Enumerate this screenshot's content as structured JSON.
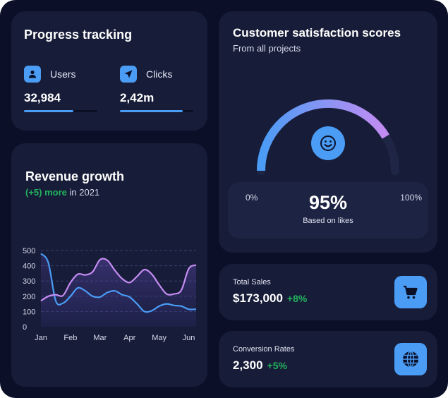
{
  "progress": {
    "title": "Progress tracking",
    "metrics": [
      {
        "label": "Users",
        "value": "32,984",
        "icon": "user-icon",
        "progress": 0.67
      },
      {
        "label": "Clicks",
        "value": "2,42m",
        "icon": "cursor-arrow-icon",
        "progress": 0.86
      }
    ]
  },
  "revenue": {
    "title": "Revenue growth",
    "change": "(+5) more",
    "period": "in 2021"
  },
  "satisfaction": {
    "title": "Customer satisfaction scores",
    "subtitle": "From all projects",
    "min_label": "0%",
    "max_label": "100%",
    "value": "95%",
    "note": "Based on likes",
    "score": 95,
    "icon": "smiley-icon"
  },
  "sales": {
    "label": "Total Sales",
    "value": "$173,000",
    "change": "+8%",
    "icon": "cart-icon"
  },
  "conversion": {
    "label": "Conversion Rates",
    "value": "2,300",
    "change": "+5%",
    "icon": "globe-icon"
  },
  "colors": {
    "accent": "#4a9cf5",
    "purple": "#c48cf2",
    "positive": "#22b35e",
    "card": "#171c38",
    "background": "#0b1028"
  },
  "chart_data": {
    "type": "line",
    "categories": [
      "Jan",
      "Feb",
      "Mar",
      "Apr",
      "May",
      "Jun"
    ],
    "y_ticks": [
      "500",
      "400",
      "300",
      "200",
      "100",
      "0"
    ],
    "ylim": [
      0,
      500
    ],
    "grid": true,
    "x": [
      0,
      0.25,
      0.5,
      0.75,
      1,
      1.25,
      1.5,
      1.75,
      2,
      2.25,
      2.5,
      2.75,
      3,
      3.25,
      3.5,
      3.75,
      4,
      4.25,
      4.5,
      4.75,
      5,
      5.25
    ],
    "series": [
      {
        "values": [
          480,
          420,
          170,
          155,
          200,
          255,
          235,
          200,
          195,
          225,
          235,
          210,
          195,
          150,
          100,
          105,
          135,
          150,
          140,
          135,
          115,
          115
        ]
      },
      {
        "values": [
          170,
          200,
          210,
          205,
          290,
          345,
          340,
          360,
          440,
          435,
          370,
          315,
          290,
          330,
          375,
          345,
          275,
          215,
          215,
          240,
          380,
          405
        ]
      }
    ]
  }
}
